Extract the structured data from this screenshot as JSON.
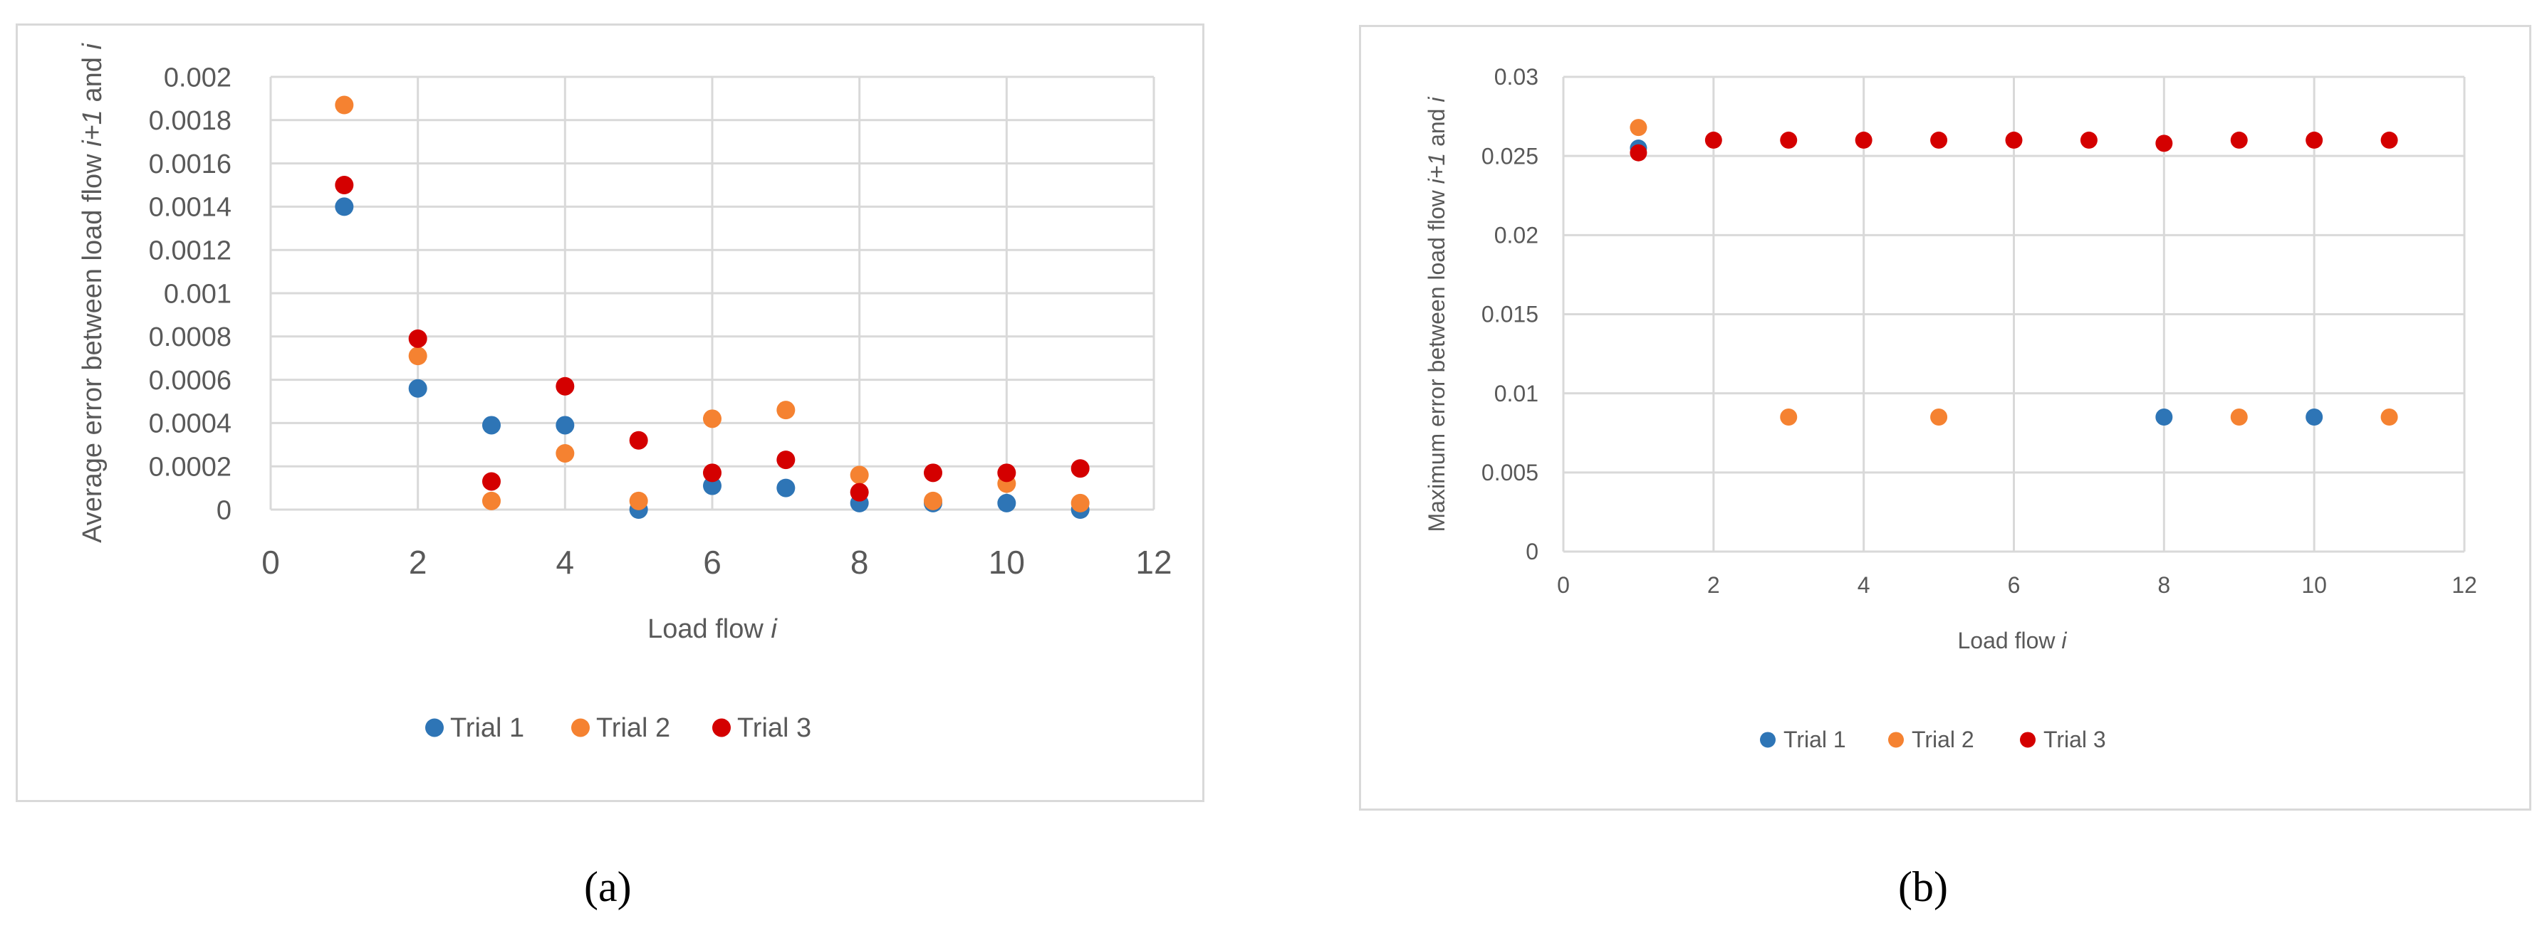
{
  "colors": {
    "trial1": "#2E75B6",
    "trial2": "#F58231",
    "trial3": "#D40000",
    "grid": "#d9d9d9",
    "text": "#595959"
  },
  "captions": {
    "a": "(a)",
    "b": "(b)"
  },
  "chart_data": [
    {
      "type": "scatter",
      "xlabel": "Load flow i",
      "ylabel": "Average error between load flow i+1 and i",
      "xlim": [
        0,
        12
      ],
      "ylim": [
        0,
        0.002
      ],
      "x_ticks": [
        "0",
        "2",
        "4",
        "6",
        "8",
        "10",
        "12"
      ],
      "y_ticks": [
        "0",
        "0.0002",
        "0.0004",
        "0.0006",
        "0.0008",
        "0.001",
        "0.0012",
        "0.0014",
        "0.0016",
        "0.0018",
        "0.002"
      ],
      "grid": "vertical and horizontal",
      "legend_position": "bottom",
      "series": [
        {
          "name": "Trial 1",
          "x": [
            1,
            2,
            3,
            4,
            5,
            6,
            7,
            8,
            9,
            10,
            11
          ],
          "values": [
            0.0014,
            0.00056,
            0.00039,
            0.00039,
            0.0,
            0.00011,
            0.0001,
            3e-05,
            3e-05,
            3e-05,
            0.0
          ]
        },
        {
          "name": "Trial 2",
          "x": [
            1,
            2,
            3,
            4,
            5,
            6,
            7,
            8,
            9,
            10,
            11
          ],
          "values": [
            0.00187,
            0.00071,
            4e-05,
            0.00026,
            4e-05,
            0.00042,
            0.00046,
            0.00016,
            4e-05,
            0.00012,
            3e-05
          ]
        },
        {
          "name": "Trial 3",
          "x": [
            1,
            2,
            3,
            4,
            5,
            6,
            7,
            8,
            9,
            10,
            11
          ],
          "values": [
            0.0015,
            0.00079,
            0.00013,
            0.00057,
            0.00032,
            0.00017,
            0.00023,
            8e-05,
            0.00017,
            0.00017,
            0.00019
          ]
        }
      ]
    },
    {
      "type": "scatter",
      "xlabel": "Load flow i",
      "ylabel": "Maximum error between load flow i+1 and i",
      "xlim": [
        0,
        12
      ],
      "ylim": [
        0,
        0.03
      ],
      "x_ticks": [
        "0",
        "2",
        "4",
        "6",
        "8",
        "10",
        "12"
      ],
      "y_ticks": [
        "0",
        "0.005",
        "0.01",
        "0.015",
        "0.02",
        "0.025",
        "0.03"
      ],
      "grid": "vertical and horizontal",
      "legend_position": "bottom",
      "series": [
        {
          "name": "Trial 1",
          "x": [
            1,
            8,
            10
          ],
          "values": [
            0.0255,
            0.0085,
            0.0085
          ]
        },
        {
          "name": "Trial 2",
          "x": [
            1,
            3,
            5,
            9,
            11
          ],
          "values": [
            0.0268,
            0.0085,
            0.0085,
            0.0085,
            0.0085
          ]
        },
        {
          "name": "Trial 3",
          "x": [
            1,
            2,
            3,
            4,
            5,
            6,
            7,
            8,
            9,
            10,
            11
          ],
          "values": [
            0.0252,
            0.026,
            0.026,
            0.026,
            0.026,
            0.026,
            0.026,
            0.0258,
            0.026,
            0.026,
            0.026
          ]
        }
      ]
    }
  ]
}
